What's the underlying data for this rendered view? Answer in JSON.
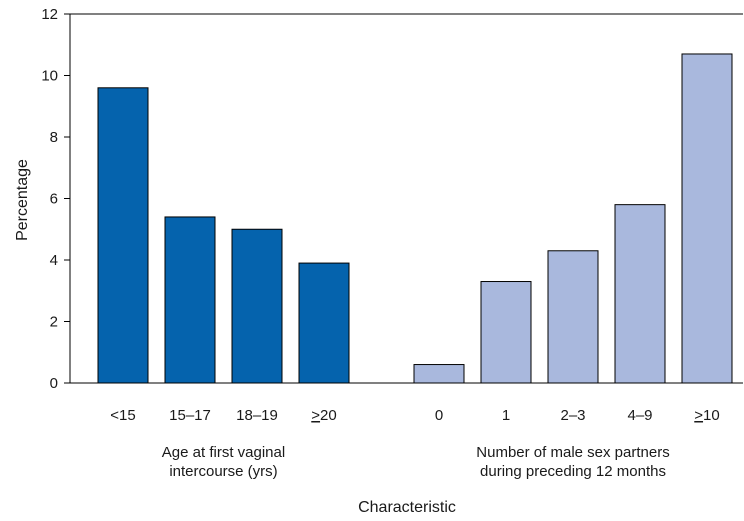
{
  "chart_data": {
    "type": "bar",
    "ylabel": "Percentage",
    "xlabel": "Characteristic",
    "ylim": [
      0,
      12
    ],
    "yticks": [
      0,
      2,
      4,
      6,
      8,
      10,
      12
    ],
    "grid": false,
    "groups": [
      {
        "label_lines": [
          "Age at first vaginal",
          "intercourse (yrs)"
        ],
        "color": "#0563ad",
        "categories": [
          {
            "label": "<15",
            "value": 9.6
          },
          {
            "label": "15–17",
            "value": 5.4
          },
          {
            "label": "18–19",
            "value": 5.0
          },
          {
            "label": "20",
            "prefix": ">",
            "value": 3.9
          }
        ]
      },
      {
        "label_lines": [
          "Number of male sex partners",
          "during preceding 12 months"
        ],
        "color": "#a9b8dd",
        "categories": [
          {
            "label": "0",
            "value": 0.6
          },
          {
            "label": "1",
            "value": 3.3
          },
          {
            "label": "2–3",
            "value": 4.3
          },
          {
            "label": "4–9",
            "value": 5.8
          },
          {
            "label": "10",
            "prefix": ">",
            "value": 10.7
          }
        ]
      }
    ]
  }
}
